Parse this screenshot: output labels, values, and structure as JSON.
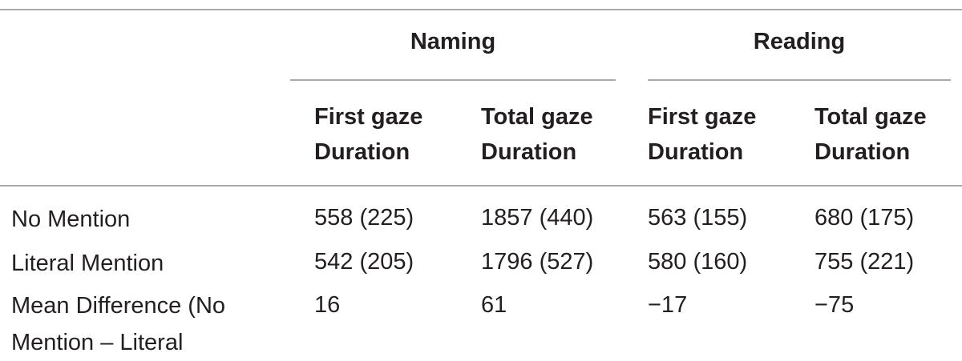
{
  "table": {
    "groups": [
      "Naming",
      "Reading"
    ],
    "columns": [
      [
        "First gaze",
        "Duration"
      ],
      [
        "Total gaze",
        "Duration"
      ],
      [
        "First gaze",
        "Duration"
      ],
      [
        "Total gaze",
        "Duration"
      ]
    ],
    "rows": [
      [
        "No Mention",
        "558 (225)",
        "1857 (440)",
        "563 (155)",
        "680 (175)"
      ],
      [
        "Literal Mention",
        "542 (205)",
        "1796 (527)",
        "580 (160)",
        "755 (221)"
      ],
      [
        "Mean Difference (No Mention – Literal",
        "16",
        "61",
        "−17",
        "−75"
      ]
    ]
  }
}
